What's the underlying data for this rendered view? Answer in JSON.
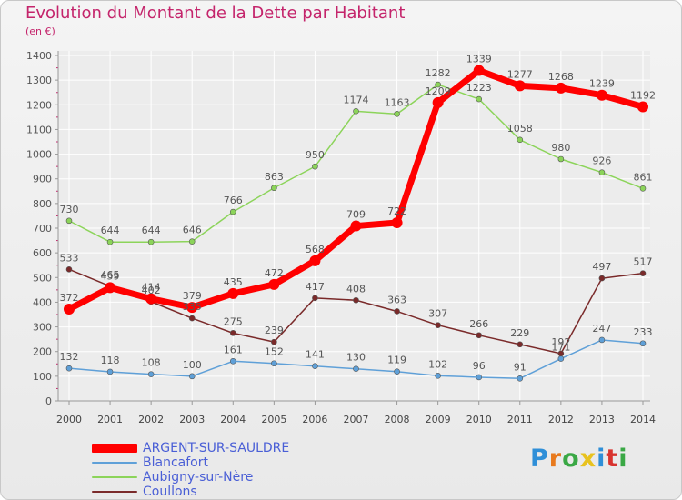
{
  "title": "Evolution du Montant de la Dette par Habitant",
  "subtitle": "(en €)",
  "logo": {
    "text": "Proxiti",
    "letter_colors": [
      "#2f8fd8",
      "#e87a1e",
      "#3aa845",
      "#e8c21e",
      "#2f8fd8",
      "#d8342f",
      "#3aa845"
    ]
  },
  "chart_data": {
    "type": "line",
    "x": [
      "2000",
      "2001",
      "2002",
      "2003",
      "2004",
      "2005",
      "2006",
      "2007",
      "2008",
      "2009",
      "2010",
      "2011",
      "2012",
      "2013",
      "2014"
    ],
    "ylim": [
      0,
      1400
    ],
    "yticks": [
      0,
      100,
      200,
      300,
      400,
      500,
      600,
      700,
      800,
      900,
      1000,
      1100,
      1200,
      1300,
      1400
    ],
    "grid": true,
    "legend_position": "bottom-left",
    "series": [
      {
        "name": "ARGENT-SUR-SAULDRE",
        "color": "#ff0000",
        "highlight": true,
        "values": [
          372,
          459,
          414,
          379,
          435,
          472,
          568,
          709,
          722,
          1209,
          1339,
          1277,
          1268,
          1239,
          1192
        ],
        "labels": [
          "372",
          "459",
          "414",
          "379",
          "435",
          "472",
          "568",
          "709",
          "722",
          "1209",
          "1339",
          "1277",
          "1268",
          "1239",
          "1192"
        ]
      },
      {
        "name": "Blancafort",
        "color": "#5fa0d8",
        "values": [
          132,
          118,
          108,
          100,
          161,
          152,
          141,
          130,
          119,
          102,
          96,
          91,
          171,
          247,
          233
        ],
        "labels": [
          "132",
          "118",
          "108",
          "100",
          "161",
          "152",
          "141",
          "130",
          "119",
          "102",
          "96",
          "91",
          "171",
          "247",
          "233"
        ]
      },
      {
        "name": "Aubigny-sur-Nère",
        "color": "#8cd45a",
        "values": [
          730,
          644,
          644,
          646,
          766,
          863,
          950,
          1174,
          1163,
          1282,
          1223,
          1058,
          980,
          926,
          861
        ],
        "labels": [
          "730",
          "644",
          "644",
          "646",
          "766",
          "863",
          "950",
          "1174",
          "1163",
          "1282",
          "1223",
          "1058",
          "980",
          "926",
          "861"
        ]
      },
      {
        "name": "Coullons",
        "color": "#7a2a2a",
        "values": [
          533,
          465,
          402,
          335,
          275,
          239,
          417,
          408,
          363,
          307,
          266,
          229,
          192,
          497,
          517
        ],
        "labels": [
          "533",
          "465",
          "402",
          "335",
          "275",
          "239",
          "417",
          "408",
          "363",
          "307",
          "266",
          "229",
          "192",
          "497",
          "517"
        ]
      }
    ]
  }
}
